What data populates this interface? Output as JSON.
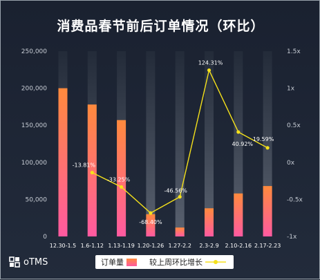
{
  "chart_data": {
    "type": "bar",
    "title": "消费品春节前后订单情况（环比）",
    "categories": [
      "12.30-1.5",
      "1.6-1.12",
      "1.13-1.19",
      "1.20-1.26",
      "1.27-2.2",
      "2.3-2.9",
      "2.10-2.16",
      "2.17-2.23"
    ],
    "series": [
      {
        "name": "订单量",
        "type": "bar",
        "axis": "left",
        "values": [
          200000,
          178000,
          157000,
          30000,
          12000,
          38000,
          58000,
          68000
        ]
      },
      {
        "name": "较上周环比增长",
        "type": "line",
        "axis": "right",
        "values": [
          null,
          -0.1381,
          -0.3325,
          -0.684,
          -0.4656,
          1.2431,
          0.4092,
          0.1959
        ],
        "labels": [
          null,
          "-13.81%",
          "-33.25%",
          "-68.40%",
          "-46.56%",
          "124.31%",
          "40.92%",
          "19.59%"
        ]
      }
    ],
    "y_left": {
      "ylim": [
        0,
        250000
      ],
      "ticks": [
        0,
        50000,
        100000,
        150000,
        200000,
        250000
      ],
      "tick_labels": [
        "0",
        "50,000",
        "100,000",
        "150,000",
        "200,000",
        "250,000"
      ]
    },
    "y_right": {
      "ylim": [
        -1,
        1.5
      ],
      "ticks": [
        -1,
        -0.5,
        0,
        0.5,
        1,
        1.5
      ],
      "tick_labels": [
        "-1x",
        "-0.5x",
        "0x",
        "0.5x",
        "1x",
        "1.5x"
      ]
    },
    "legend": "bottom",
    "grid": false,
    "colors": {
      "background": "#1d2533",
      "bar_top": "#ff8a3d",
      "bar_bottom": "#ff5aa0",
      "track": "#4a5361",
      "line": "#f5e11b",
      "axis_text": "#c9ced6"
    }
  },
  "legend": {
    "bar_label": "订单量",
    "line_label": "较上周环比增长"
  },
  "brand": {
    "name": "oTMS"
  }
}
